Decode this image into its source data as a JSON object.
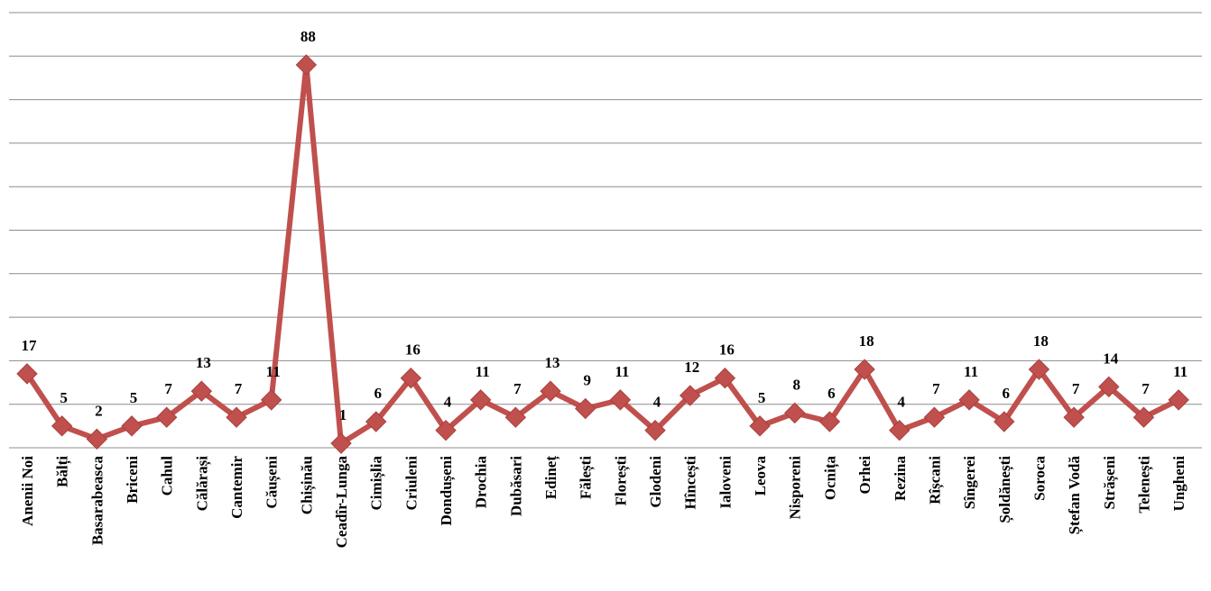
{
  "chart_data": {
    "type": "line",
    "title": "",
    "xlabel": "",
    "ylabel": "",
    "ylim": [
      0,
      100
    ],
    "grid": true,
    "legend": "none",
    "colors": {
      "line": "#c0504d",
      "marker": "#c0504d",
      "grid": "#8c8c8c"
    },
    "categories": [
      "Anenii Noi",
      "Bălți",
      "Basarabeasca",
      "Briceni",
      "Cahul",
      "Călărași",
      "Cantemir",
      "Căușeni",
      "Chișinău",
      "Ceadîr-Lunga",
      "Cimișlia",
      "Criuleni",
      "Dondușeni",
      "Drochia",
      "Dubăsari",
      "Edineț",
      "Fălești",
      "Florești",
      "Glodeni",
      "Hîncești",
      "Ialoveni",
      "Leova",
      "Nisporeni",
      "Ocnița",
      "Orhei",
      "Rezina",
      "Rîșcani",
      "Sîngerei",
      "Șoldănești",
      "Soroca",
      "Ștefan Vodă",
      "Strășeni",
      "Telenești",
      "Ungheni"
    ],
    "series": [
      {
        "values": [
          17,
          5,
          2,
          5,
          7,
          13,
          7,
          11,
          88,
          1,
          6,
          16,
          4,
          11,
          7,
          13,
          9,
          11,
          4,
          12,
          16,
          5,
          8,
          6,
          18,
          4,
          7,
          11,
          6,
          18,
          7,
          14,
          7,
          11
        ]
      }
    ]
  }
}
